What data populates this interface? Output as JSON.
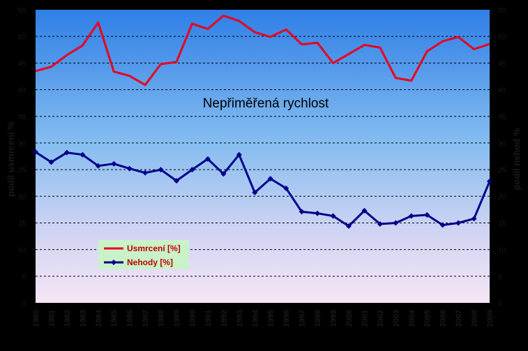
{
  "chart_data": {
    "type": "line",
    "annotation": "Nepřiměřená rychlost",
    "ylabel_left": "podíl usmrcení %",
    "ylabel_right": "podíl nehod %",
    "ylim": [
      0,
      55
    ],
    "yticks": [
      0,
      5,
      10,
      15,
      20,
      25,
      30,
      35,
      40,
      45,
      50,
      55
    ],
    "grid": true,
    "legend_position": "bottom-left",
    "x": [
      "1980",
      "1981",
      "1982",
      "1983",
      "1984",
      "1985",
      "1986",
      "1987",
      "1988",
      "1989",
      "1990",
      "1991",
      "1992",
      "1993",
      "1994",
      "1995",
      "1996",
      "1997",
      "1998",
      "1999",
      "2000",
      "2001",
      "2002",
      "2003",
      "2004",
      "2005",
      "2006",
      "2007",
      "2008",
      "2009"
    ],
    "series": [
      {
        "name": "Usmrcení [%]",
        "color": "#e8001c",
        "marker": "none",
        "values": [
          43.5,
          44.3,
          46.5,
          48.3,
          52.6,
          43.4,
          42.6,
          40.9,
          44.8,
          45.2,
          52.4,
          51.4,
          53.9,
          52.9,
          50.8,
          49.9,
          51.3,
          48.5,
          48.8,
          45.0,
          46.7,
          48.4,
          47.9,
          42.2,
          41.7,
          47.2,
          49.1,
          49.9,
          47.6,
          48.6
        ]
      },
      {
        "name": "Nehody [%]",
        "color": "#00008b",
        "marker": "diamond",
        "values": [
          28.3,
          26.4,
          28.2,
          27.8,
          25.7,
          26.1,
          25.2,
          24.4,
          25.0,
          22.9,
          25.0,
          27.0,
          24.2,
          27.8,
          20.7,
          23.3,
          21.5,
          17.1,
          16.8,
          16.3,
          14.4,
          17.3,
          14.8,
          15.0,
          16.3,
          16.5,
          14.6,
          15.0,
          15.8,
          22.8
        ]
      }
    ]
  }
}
